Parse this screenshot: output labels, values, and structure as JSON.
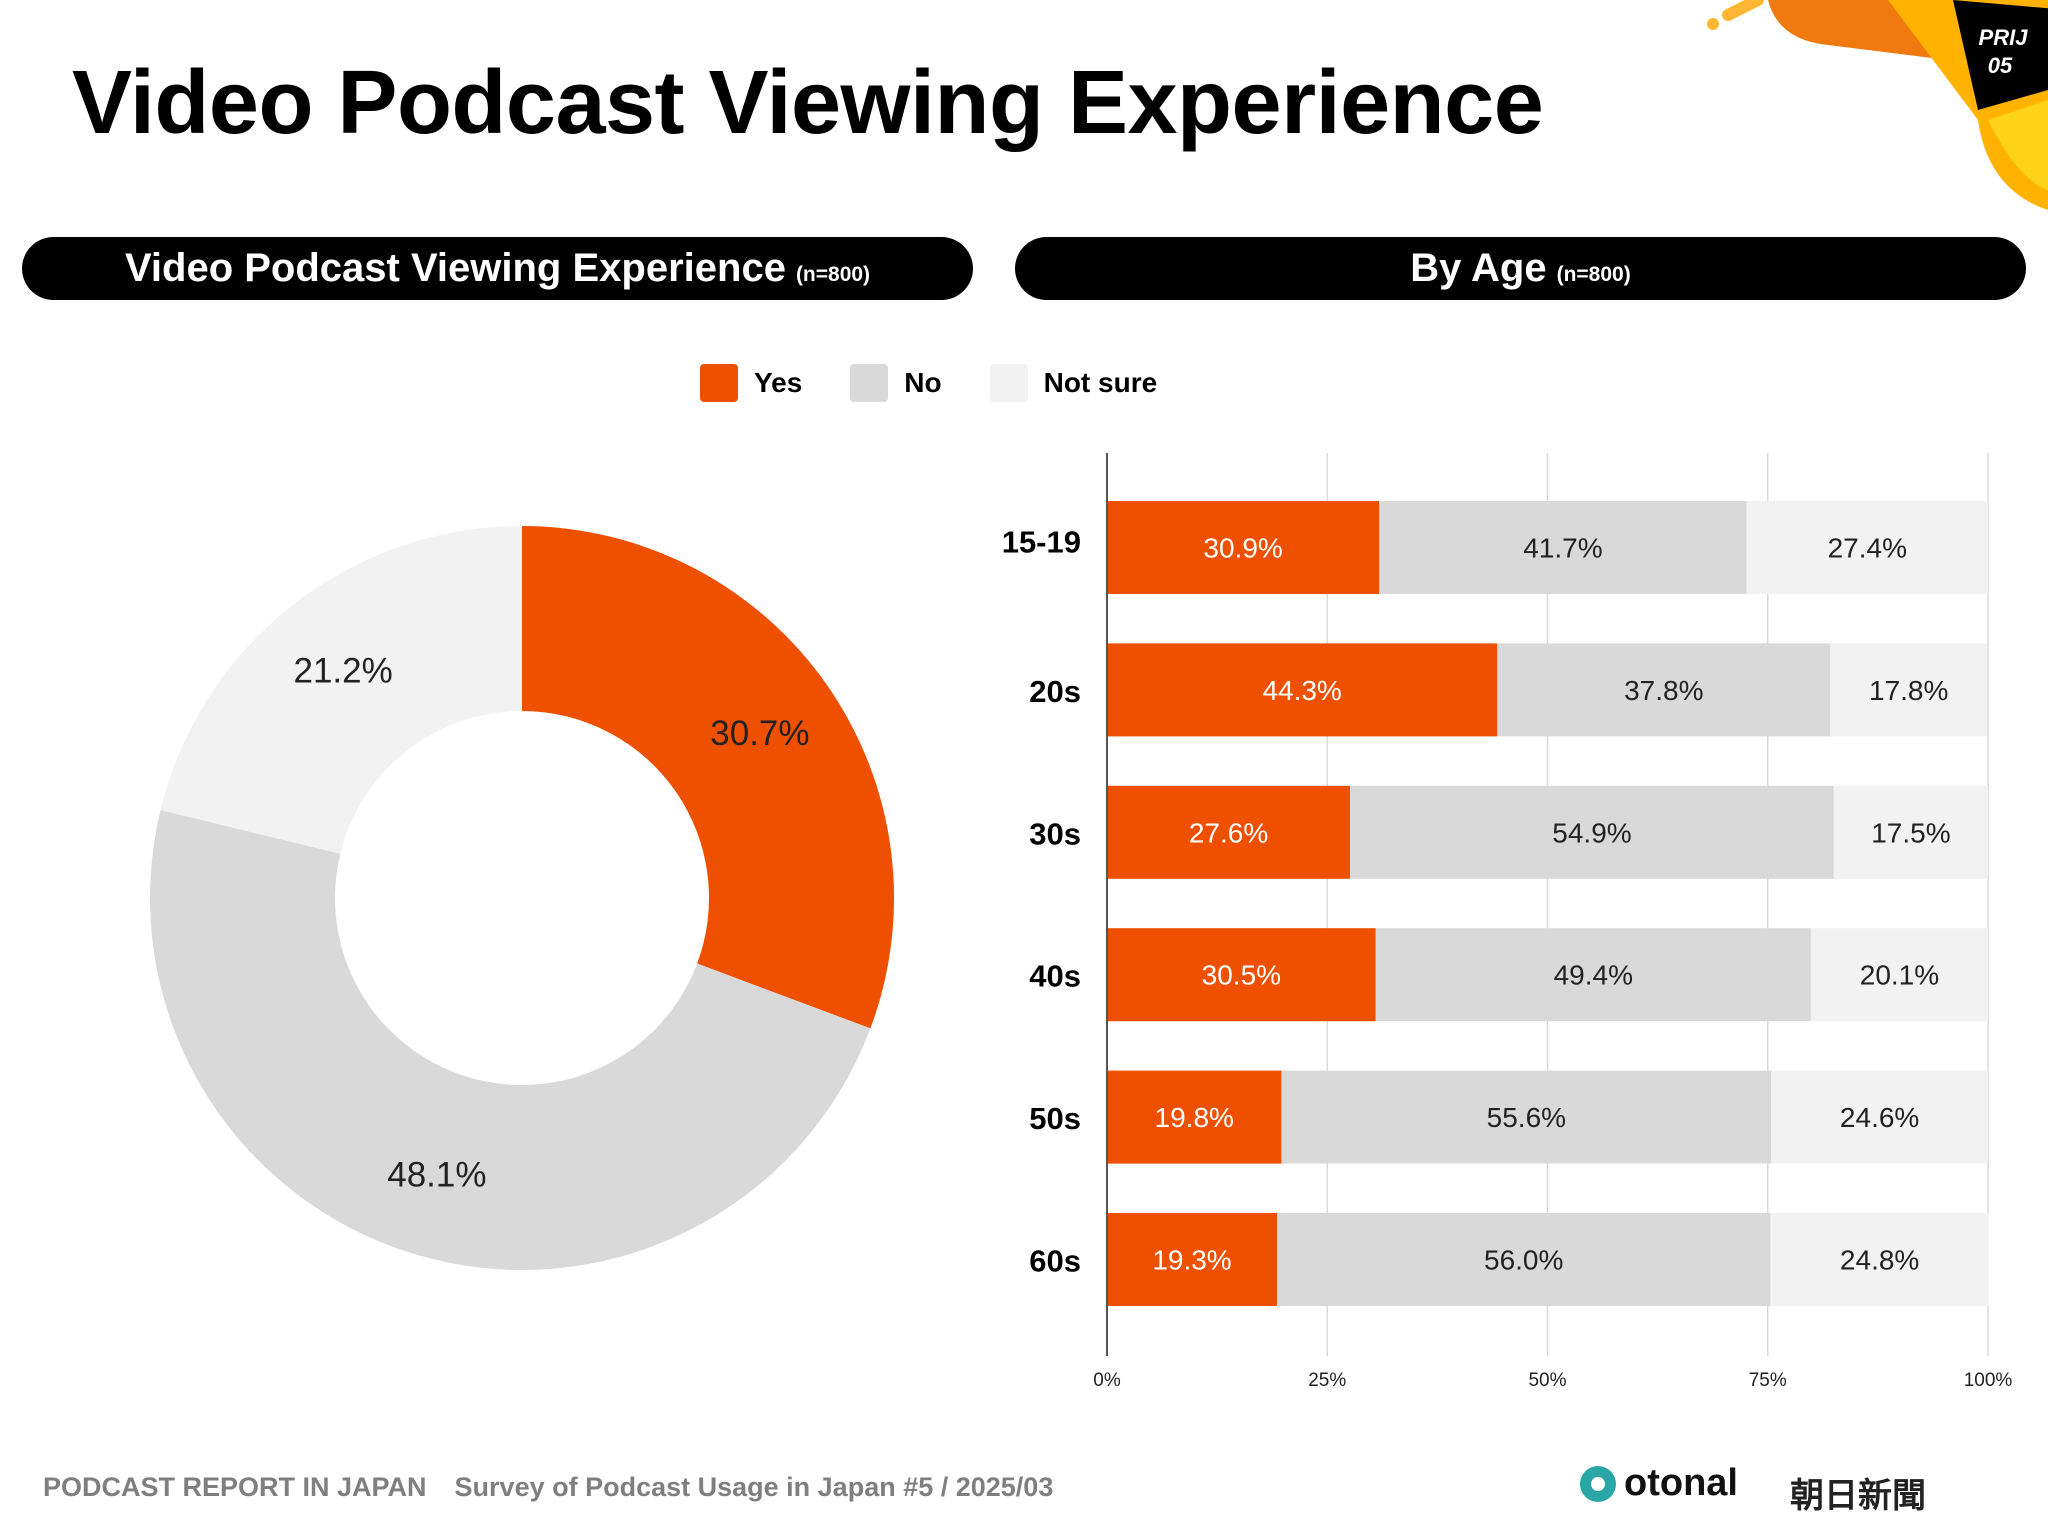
{
  "header": {
    "title": "Video Podcast Viewing Experience",
    "badge": "PRIJ 05"
  },
  "panels": {
    "left": {
      "title": "Video Podcast Viewing Experience",
      "n": "(n=800)"
    },
    "right": {
      "title": "By Age",
      "n": "(n=800)"
    }
  },
  "legend": [
    {
      "label": "Yes",
      "color": "#EE5000"
    },
    {
      "label": "No",
      "color": "#D9D9D9"
    },
    {
      "label": "Not sure",
      "color": "#F2F2F2"
    }
  ],
  "chart_data": [
    {
      "type": "pie",
      "variant": "donut",
      "categories": [
        "Yes",
        "No",
        "Not sure"
      ],
      "values": [
        30.7,
        48.1,
        21.2
      ],
      "labels": [
        "30.7%",
        "48.1%",
        "21.2%"
      ],
      "colors": [
        "#EE5000",
        "#D9D9D9",
        "#F2F2F2"
      ],
      "start": "top",
      "direction": "clockwise"
    },
    {
      "type": "bar",
      "orientation": "horizontal",
      "stacked": true,
      "categories": [
        "15-19",
        "20s",
        "30s",
        "40s",
        "50s",
        "60s"
      ],
      "series": [
        {
          "name": "Yes",
          "values": [
            30.9,
            44.3,
            27.6,
            30.5,
            19.8,
            19.3
          ],
          "color": "#EE5000"
        },
        {
          "name": "No",
          "values": [
            41.7,
            37.8,
            54.9,
            49.4,
            55.6,
            56.0
          ],
          "color": "#D9D9D9"
        },
        {
          "name": "Not sure",
          "values": [
            27.4,
            17.8,
            17.5,
            20.1,
            24.6,
            24.8
          ],
          "color": "#F2F2F2"
        }
      ],
      "xlim": [
        0,
        100
      ],
      "xticks": [
        "0%",
        "25%",
        "50%",
        "75%",
        "100%"
      ],
      "grid": true
    }
  ],
  "footer": {
    "report": "PODCAST REPORT IN JAPAN",
    "survey": "Survey of Podcast Usage in Japan #5 / 2025/03",
    "logo1": "otonal",
    "logo2": "朝日新聞"
  }
}
